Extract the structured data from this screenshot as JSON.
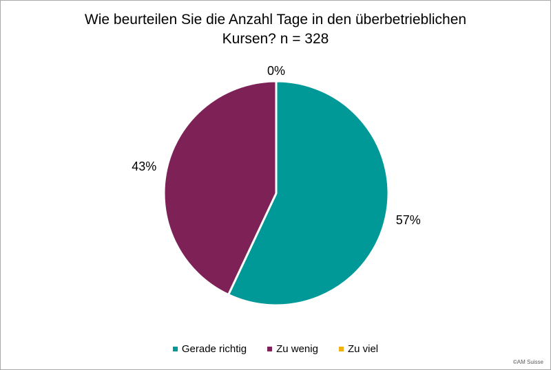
{
  "page": {
    "background": "#ffffff",
    "border_color": "#a8a8a8"
  },
  "title": {
    "line1": "Wie beurteilen Sie die Anzahl Tage in den überbetrieblichen",
    "line2": "Kursen? n = 328"
  },
  "footer": {
    "credit": "©AM Suisse"
  },
  "chart_data": {
    "type": "pie",
    "title": "Wie beurteilen Sie die Anzahl Tage in den überbetrieblichen Kursen? n = 328",
    "n": 328,
    "categories": [
      "Gerade richtig",
      "Zu wenig",
      "Zu viel"
    ],
    "values": [
      57,
      43,
      0
    ],
    "unit": "%",
    "labels": [
      "57%",
      "43%",
      "0%"
    ],
    "colors": [
      "#009998",
      "#7e2157",
      "#f0b010"
    ],
    "slice_border_color": "#ffffff",
    "start_angle_deg": 0,
    "direction": "clockwise",
    "legend_position": "bottom",
    "label_position": "outside",
    "label_color": "#000000"
  }
}
